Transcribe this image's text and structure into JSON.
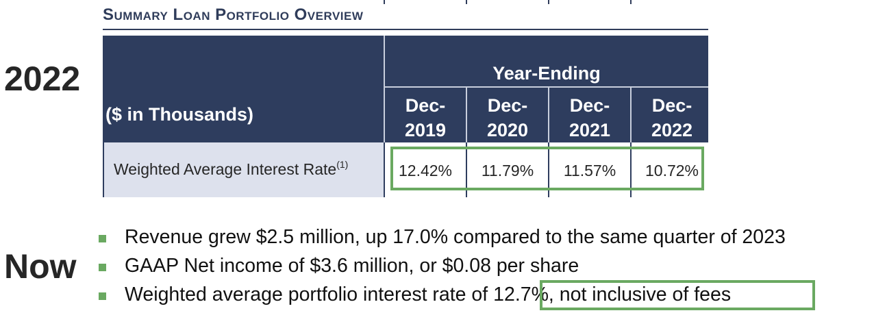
{
  "labels": {
    "past": "2022",
    "present": "Now"
  },
  "section": {
    "title": "Summary Loan Portfolio Overview"
  },
  "table": {
    "units_label": "($ in Thousands)",
    "group_header": "Year-Ending",
    "columns": [
      {
        "top": "Dec-",
        "bottom": "2019"
      },
      {
        "top": "Dec-",
        "bottom": "2020"
      },
      {
        "top": "Dec-",
        "bottom": "2021"
      },
      {
        "top": "Dec-",
        "bottom": "2022"
      }
    ],
    "row": {
      "label": "Weighted Average Interest Rate",
      "footnote": "(1)",
      "values": [
        "12.42%",
        "11.79%",
        "11.57%",
        "10.72%"
      ]
    }
  },
  "bullets": [
    "Revenue grew $2.5 million, up 17.0% compared to the same quarter of 2023",
    "GAAP Net income of $3.6 million, or $0.08 per share",
    "Weighted average portfolio interest rate of 12.7%, not inclusive of fees"
  ],
  "colors": {
    "header_navy": "#2e3d5e",
    "label_cell": "#dde1ed",
    "highlight_green": "#6aa961"
  }
}
